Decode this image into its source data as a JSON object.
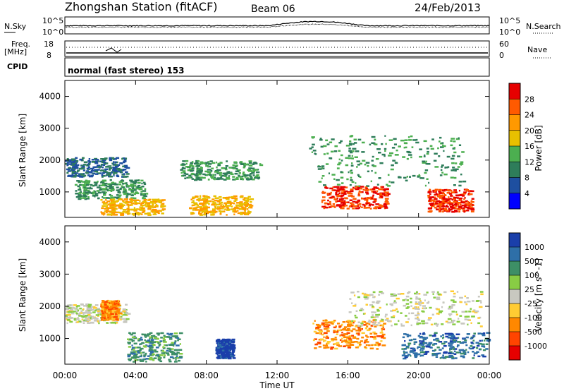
{
  "header": {
    "station": "Zhongshan Station (fitACF)",
    "beam": "Beam 06",
    "date": "24/Feb/2013"
  },
  "noise_panel": {
    "left_label": "N.Sky",
    "right_label": "N.Search",
    "left_ticks": [
      "10^5",
      "10^0"
    ],
    "right_ticks": [
      "10^5",
      "10^0"
    ]
  },
  "freq_panel": {
    "left_label_1": "Freq.",
    "left_label_2": "[MHz]",
    "right_label": "Nave",
    "left_ticks": [
      "18",
      "8"
    ],
    "right_ticks": [
      "60",
      "0"
    ]
  },
  "cpid": {
    "label": "CPID",
    "mode": "normal (fast stereo) 153"
  },
  "chart_data": [
    {
      "type": "heatmap",
      "quantity": "power",
      "ylabel": "Slant Range [km]",
      "yticks": [
        "4000",
        "3000",
        "2000",
        "1000"
      ],
      "ylim": [
        200,
        4500
      ],
      "xlim": [
        "00:00",
        "24:00"
      ],
      "colorbar": {
        "label": "Power [dB]",
        "ticks": [
          "28",
          "24",
          "20",
          "16",
          "12",
          "8",
          "4"
        ],
        "colors": [
          "#e60000",
          "#ff5a00",
          "#ff9900",
          "#e8c000",
          "#4caf50",
          "#2e7d5a",
          "#1e4fa0",
          "#0000ff"
        ]
      },
      "regions": [
        {
          "t": [
            0.0,
            3.5
          ],
          "r": [
            1500,
            2100
          ],
          "level": 8
        },
        {
          "t": [
            0.5,
            4.5
          ],
          "r": [
            800,
            1400
          ],
          "level": 12
        },
        {
          "t": [
            2.0,
            5.5
          ],
          "r": [
            300,
            800
          ],
          "level": 16
        },
        {
          "t": [
            6.5,
            11.0
          ],
          "r": [
            1400,
            2000
          ],
          "level": 12
        },
        {
          "t": [
            7.0,
            10.5
          ],
          "r": [
            300,
            900
          ],
          "level": 16
        },
        {
          "t": [
            13.8,
            22.5
          ],
          "r": [
            1200,
            2800
          ],
          "level": 12
        },
        {
          "t": [
            14.5,
            18.2
          ],
          "r": [
            500,
            1200
          ],
          "level": 28
        },
        {
          "t": [
            20.5,
            23.0
          ],
          "r": [
            400,
            1100
          ],
          "level": 28
        }
      ]
    },
    {
      "type": "heatmap",
      "quantity": "velocity",
      "ylabel": "Slant Range [km]",
      "yticks": [
        "4000",
        "3000",
        "2000",
        "1000"
      ],
      "ylim": [
        200,
        4500
      ],
      "xlim": [
        "00:00",
        "24:00"
      ],
      "colorbar": {
        "label": "Velocity [m s^-1]",
        "ticks": [
          "1000",
          "500",
          "100",
          "25",
          "-25",
          "-100",
          "-500",
          "-1000"
        ],
        "colors": [
          "#1a3faa",
          "#2e6fa8",
          "#3d8f66",
          "#88cc44",
          "#c8c8c0",
          "#ffcc33",
          "#ff8800",
          "#ff4400",
          "#e60000"
        ]
      },
      "regions": [
        {
          "t": [
            0.0,
            3.5
          ],
          "r": [
            1500,
            2100
          ],
          "level": 25
        },
        {
          "t": [
            2.0,
            3.0
          ],
          "r": [
            1600,
            2200
          ],
          "level": -500
        },
        {
          "t": [
            3.5,
            6.5
          ],
          "r": [
            300,
            1200
          ],
          "level": 100
        },
        {
          "t": [
            8.5,
            9.5
          ],
          "r": [
            400,
            1000
          ],
          "level": 1000
        },
        {
          "t": [
            14.0,
            18.0
          ],
          "r": [
            700,
            1600
          ],
          "level": -500
        },
        {
          "t": [
            16.0,
            23.5
          ],
          "r": [
            1400,
            2500
          ],
          "level": -25
        },
        {
          "t": [
            19.0,
            24.0
          ],
          "r": [
            400,
            1200
          ],
          "level": 500
        }
      ]
    }
  ],
  "xaxis": {
    "ticks": [
      "00:00",
      "04:00",
      "08:00",
      "12:00",
      "16:00",
      "20:00",
      "00:00"
    ],
    "label": "Time UT"
  }
}
